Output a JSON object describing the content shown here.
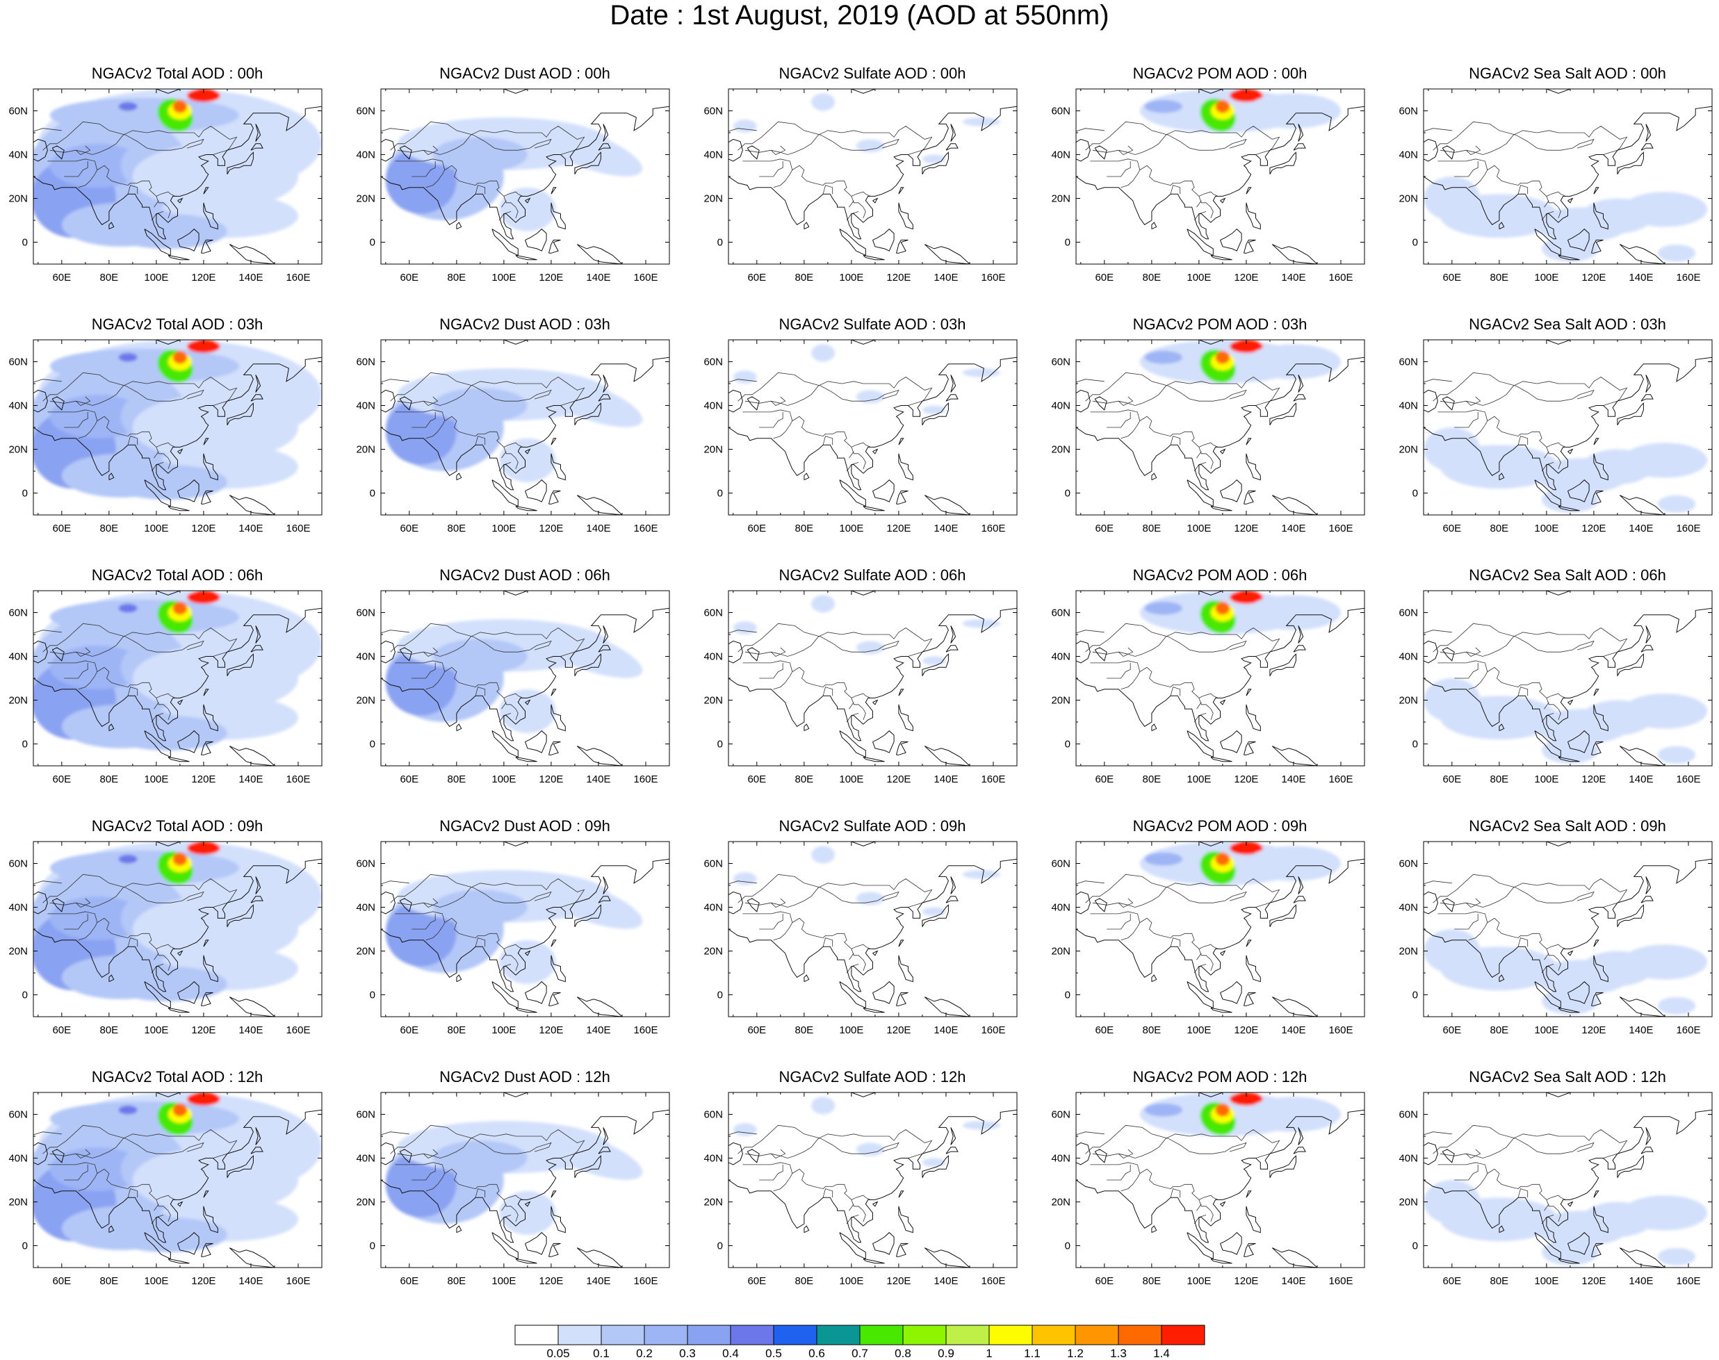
{
  "title": "Date : 1st August, 2019 (AOD at 550nm)",
  "map": {
    "lon_range": [
      48,
      170
    ],
    "lat_range": [
      -10,
      70
    ],
    "lon_ticks": [
      "60E",
      "80E",
      "100E",
      "120E",
      "140E",
      "160E"
    ],
    "lat_ticks": [
      "60N",
      "40N",
      "20N",
      "0"
    ]
  },
  "panels": [
    {
      "title": "NGACv2 Total AOD : 00h",
      "species": "total",
      "hour": "00h"
    },
    {
      "title": "NGACv2 Dust AOD : 00h",
      "species": "dust",
      "hour": "00h"
    },
    {
      "title": "NGACv2 Sulfate AOD : 00h",
      "species": "sulfate",
      "hour": "00h"
    },
    {
      "title": "NGACv2 POM AOD : 00h",
      "species": "pom",
      "hour": "00h"
    },
    {
      "title": "NGACv2 Sea Salt AOD : 00h",
      "species": "seasalt",
      "hour": "00h"
    },
    {
      "title": "NGACv2 Total AOD : 03h",
      "species": "total",
      "hour": "03h"
    },
    {
      "title": "NGACv2 Dust AOD : 03h",
      "species": "dust",
      "hour": "03h"
    },
    {
      "title": "NGACv2 Sulfate AOD : 03h",
      "species": "sulfate",
      "hour": "03h"
    },
    {
      "title": "NGACv2 POM AOD : 03h",
      "species": "pom",
      "hour": "03h"
    },
    {
      "title": "NGACv2 Sea Salt AOD : 03h",
      "species": "seasalt",
      "hour": "03h"
    },
    {
      "title": "NGACv2 Total AOD : 06h",
      "species": "total",
      "hour": "06h"
    },
    {
      "title": "NGACv2 Dust AOD : 06h",
      "species": "dust",
      "hour": "06h"
    },
    {
      "title": "NGACv2 Sulfate AOD : 06h",
      "species": "sulfate",
      "hour": "06h"
    },
    {
      "title": "NGACv2 POM AOD : 06h",
      "species": "pom",
      "hour": "06h"
    },
    {
      "title": "NGACv2 Sea Salt AOD : 06h",
      "species": "seasalt",
      "hour": "06h"
    },
    {
      "title": "NGACv2 Total AOD : 09h",
      "species": "total",
      "hour": "09h"
    },
    {
      "title": "NGACv2 Dust AOD : 09h",
      "species": "dust",
      "hour": "09h"
    },
    {
      "title": "NGACv2 Sulfate AOD : 09h",
      "species": "sulfate",
      "hour": "09h"
    },
    {
      "title": "NGACv2 POM AOD : 09h",
      "species": "pom",
      "hour": "09h"
    },
    {
      "title": "NGACv2 Sea Salt  AOD : 09h",
      "species": "seasalt",
      "hour": "09h"
    },
    {
      "title": "NGACv2 Total AOD  : 12h",
      "species": "total",
      "hour": "12h"
    },
    {
      "title": "NGACv2 Dust AOD : 12h",
      "species": "dust",
      "hour": "12h"
    },
    {
      "title": "NGACv2 Sulfate AOD : 12h",
      "species": "sulfate",
      "hour": "12h"
    },
    {
      "title": "NGACv2 POM  AOD : 12h",
      "species": "pom",
      "hour": "12h"
    },
    {
      "title": "NGACv2 Sea Salt  AOD : 12h",
      "species": "seasalt",
      "hour": "12h"
    }
  ],
  "colorbar": {
    "labels": [
      "0.05",
      "0.1",
      "0.2",
      "0.3",
      "0.4",
      "0.5",
      "0.6",
      "0.7",
      "0.8",
      "0.9",
      "1",
      "1.1",
      "1.2",
      "1.3",
      "1.4"
    ],
    "colors": [
      "#ffffff",
      "#d3e0fc",
      "#b4c8f8",
      "#9db5f5",
      "#8aa2f2",
      "#6c78ea",
      "#1f62f0",
      "#0b9696",
      "#49e800",
      "#8ef500",
      "#bff048",
      "#fdfd00",
      "#ffc300",
      "#ff9600",
      "#ff6a00",
      "#ff1e00"
    ]
  }
}
